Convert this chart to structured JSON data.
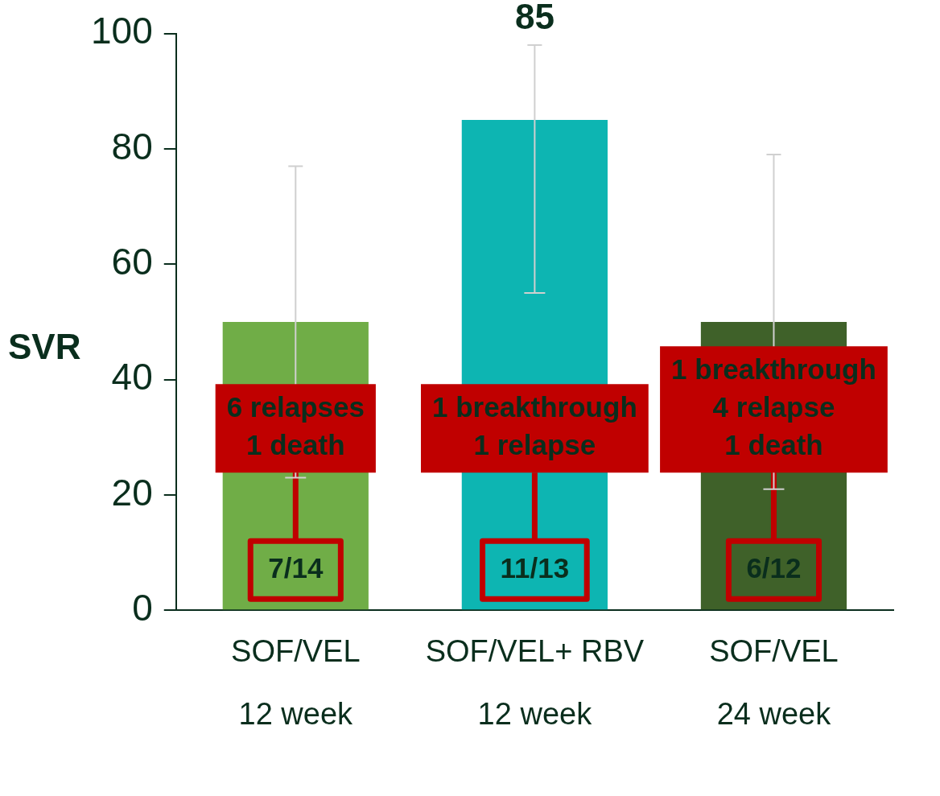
{
  "chart_data": {
    "type": "bar",
    "ylabel": "SVR",
    "categories": [
      "SOF/VEL\n12 week",
      "SOF/VEL+ RBV\n12 week",
      "SOF/VEL\n24 week"
    ],
    "values": [
      50,
      85,
      50
    ],
    "colors": [
      "#70ad47",
      "#0db5b2",
      "#3f6129"
    ],
    "errors": [
      [
        23,
        77
      ],
      [
        55,
        98
      ],
      [
        21,
        79
      ]
    ],
    "value_labels": [
      null,
      "85",
      null
    ],
    "ylim": [
      0,
      100
    ],
    "yticks": [
      0,
      20,
      40,
      60,
      80,
      100
    ],
    "annotations": [
      "6 relapses\n1 death",
      {
        "text": "7/14",
        "x": "SOF/VEL\n12 week",
        "y": 0
      },
      "1 breakthrough\n1 relapse",
      {
        "text": "11/13",
        "x": "SOF/VEL+ RBV\n12 week",
        "y": 0
      },
      "1 breakthrough\n4 relapse\n1 death",
      {
        "text": "6/12",
        "x": "SOF/VEL\n24 week",
        "y": 0
      }
    ]
  }
}
